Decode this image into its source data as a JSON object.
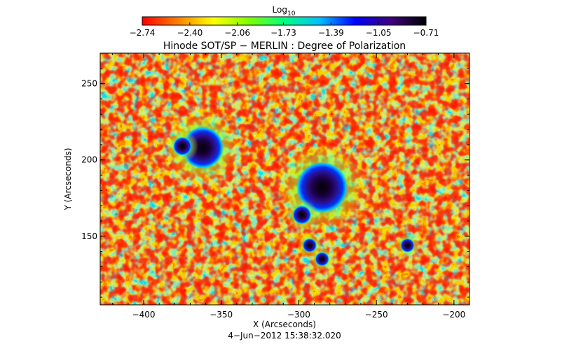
{
  "chart_data": {
    "type": "heatmap",
    "title": "Hinode SOT/SP − MERLIN : Degree of Polarization",
    "xlabel": "X (Arcseconds)",
    "ylabel": "Y (Arcseconds)",
    "subtitle": "4−Jun−2012 15:38:32.020",
    "xlim": [
      -428,
      -190
    ],
    "ylim": [
      105,
      270
    ],
    "x_ticks": [
      -400,
      -350,
      -300,
      -250,
      -200
    ],
    "x_tick_labels": [
      "−400",
      "−350",
      "−300",
      "−250",
      "−200"
    ],
    "y_ticks": [
      150,
      200,
      250
    ],
    "y_tick_labels": [
      "150",
      "200",
      "250"
    ],
    "colorbar": {
      "label": "Log",
      "label_sub": "10",
      "range": [
        -2.74,
        -0.71
      ],
      "tick_labels": [
        "−2.74",
        "−2.40",
        "−2.06",
        "−1.73",
        "−1.39",
        "−1.05",
        "−0.71"
      ],
      "ticks": [
        -2.74,
        -2.4,
        -2.06,
        -1.73,
        -1.39,
        -1.05,
        -0.71
      ],
      "colormap": [
        "#ff0000",
        "#ff8000",
        "#ffff00",
        "#80ff00",
        "#00ff80",
        "#00c0ff",
        "#0000ff",
        "#400080",
        "#000000"
      ]
    },
    "features": [
      {
        "x": -362,
        "y": 208,
        "radius": 9,
        "value": -0.71
      },
      {
        "x": -375,
        "y": 209,
        "radius": 4,
        "value": -0.9
      },
      {
        "x": -285,
        "y": 182,
        "radius": 11,
        "value": -0.71
      },
      {
        "x": -298,
        "y": 164,
        "radius": 4,
        "value": -1.0
      },
      {
        "x": -293,
        "y": 144,
        "radius": 3,
        "value": -1.0
      },
      {
        "x": -285,
        "y": 135,
        "radius": 3,
        "value": -1.05
      },
      {
        "x": -230,
        "y": 144,
        "radius": 3,
        "value": -1.0
      }
    ]
  }
}
